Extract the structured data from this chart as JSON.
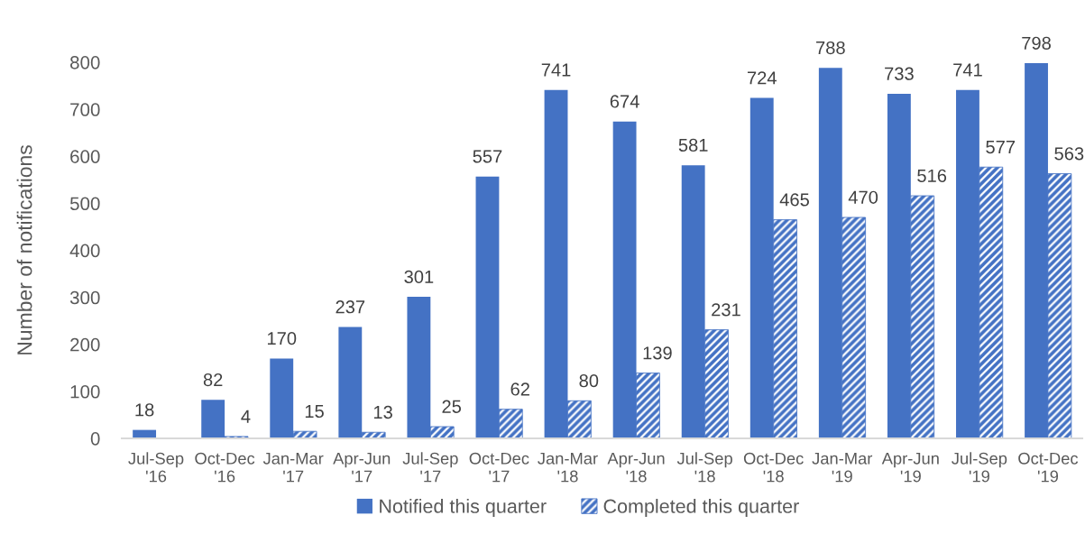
{
  "chart_data": {
    "type": "bar",
    "categories": [
      "Jul-Sep\n'16",
      "Oct-Dec\n'16",
      "Jan-Mar\n'17",
      "Apr-Jun\n'17",
      "Jul-Sep\n'17",
      "Oct-Dec\n'17",
      "Jan-Mar\n'18",
      "Apr-Jun\n'18",
      "Jul-Sep\n'18",
      "Oct-Dec\n'18",
      "Jan-Mar\n'19",
      "Apr-Jun\n'19",
      "Jul-Sep\n'19",
      "Oct-Dec\n'19"
    ],
    "series": [
      {
        "name": "Notified this quarter",
        "color": "#4472c4",
        "values": [
          18,
          82,
          170,
          237,
          301,
          557,
          741,
          674,
          581,
          724,
          788,
          733,
          741,
          798
        ]
      },
      {
        "name": "Completed this quarter",
        "color": "#4472c4",
        "values": [
          null,
          4,
          15,
          13,
          25,
          62,
          80,
          139,
          231,
          465,
          470,
          516,
          577,
          563
        ]
      }
    ],
    "ylabel": "Number of notifications",
    "ylim": [
      0,
      800
    ],
    "yticks": [
      0,
      100,
      200,
      300,
      400,
      500,
      600,
      700,
      800
    ],
    "data_labels": true,
    "grid": false,
    "legend": "bottom"
  }
}
